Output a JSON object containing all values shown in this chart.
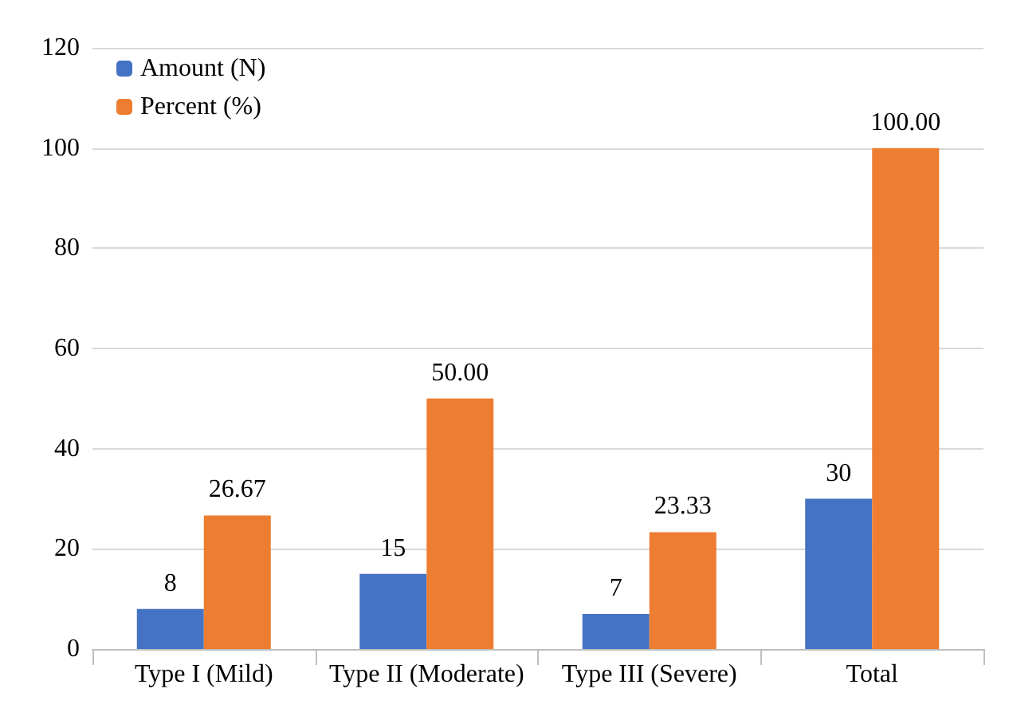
{
  "chart_data": {
    "type": "bar",
    "categories": [
      "Type I (Mild)",
      "Type II (Moderate)",
      "Type III (Severe)",
      "Total"
    ],
    "series": [
      {
        "name": "Amount (N)",
        "color": "#4472c4",
        "values": [
          8,
          15,
          7,
          30
        ],
        "value_labels": [
          "8",
          "15",
          "7",
          "30"
        ]
      },
      {
        "name": "Percent (%)",
        "color": "#ed7d31",
        "values": [
          26.67,
          50,
          23.33,
          100
        ],
        "value_labels": [
          "26.67",
          "50.00",
          "23.33",
          "100.00"
        ]
      }
    ],
    "ylim": [
      0,
      120
    ],
    "yticks": [
      0,
      20,
      40,
      60,
      80,
      100,
      120
    ],
    "grid": "y",
    "legend": "top left"
  }
}
